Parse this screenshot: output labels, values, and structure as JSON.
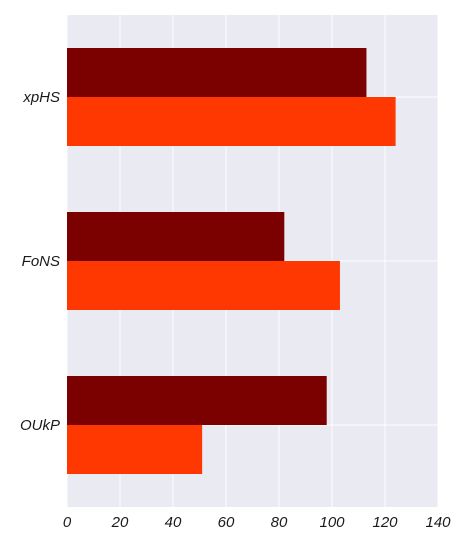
{
  "chart_data": {
    "type": "bar",
    "orientation": "horizontal",
    "categories": [
      "xpHS",
      "FoNS",
      "OUkP"
    ],
    "series": [
      {
        "values": [
          113,
          82,
          98
        ],
        "color": "#7b0000"
      },
      {
        "values": [
          124,
          103,
          51
        ],
        "color": "#ff3700"
      }
    ],
    "xlim": [
      0,
      140
    ],
    "xticks": [
      0,
      20,
      40,
      60,
      80,
      100,
      120,
      140
    ],
    "grid": true,
    "legend": "none",
    "title": "",
    "xlabel": "",
    "ylabel": ""
  }
}
